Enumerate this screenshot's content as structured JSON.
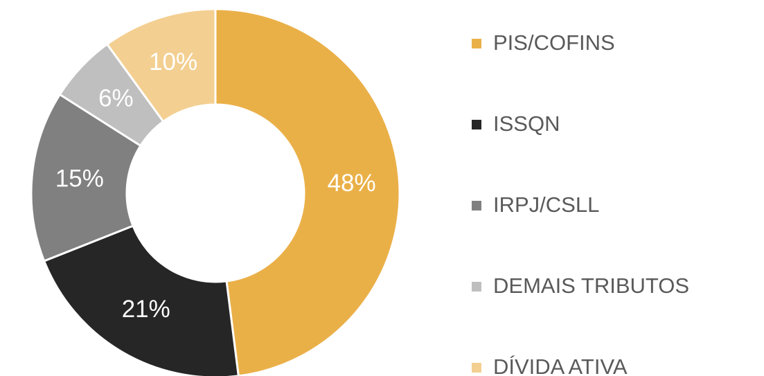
{
  "chart_data": {
    "type": "pie",
    "categories": [
      "PIS/COFINS",
      "ISSQN",
      "IRPJ/CSLL",
      "DEMAIS TRIBUTOS",
      "DÍVIDA ATIVA"
    ],
    "values": [
      48,
      21,
      15,
      6,
      10
    ],
    "value_labels": [
      "48%",
      "21%",
      "15%",
      "6%",
      "10%"
    ],
    "colors": [
      "#eab048",
      "#262626",
      "#808080",
      "#bfbfbf",
      "#f3cf91"
    ],
    "donut": true,
    "legend": "right"
  }
}
